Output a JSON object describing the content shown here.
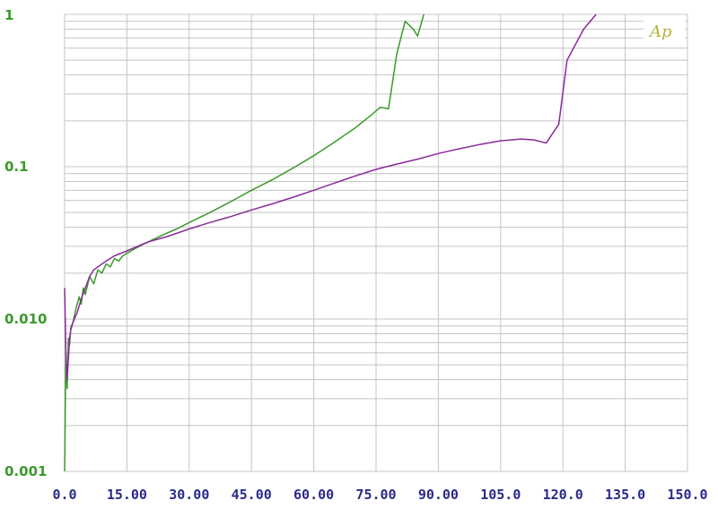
{
  "chart_data": {
    "type": "line",
    "title": "",
    "xlabel": "",
    "ylabel": "",
    "xlim": [
      0,
      150
    ],
    "ylim": [
      0.001,
      1
    ],
    "yscale": "log",
    "grid": true,
    "logo_text": "Ap",
    "x_tick_labels": [
      "0.0",
      "15.00",
      "30.00",
      "45.00",
      "60.00",
      "75.00",
      "90.00",
      "105.0",
      "120.0",
      "135.0",
      "150.0"
    ],
    "y_tick_labels": [
      {
        "label": "1",
        "value": 1
      },
      {
        "label": "0.1",
        "value": 0.1
      },
      {
        "label": "0.010",
        "value": 0.01
      },
      {
        "label": "0.001",
        "value": 0.001
      }
    ],
    "series": [
      {
        "color": "#3a9a2a",
        "points": [
          [
            0.0,
            0.001
          ],
          [
            0.3,
            0.006
          ],
          [
            0.6,
            0.0035
          ],
          [
            0.9,
            0.0075
          ],
          [
            1.2,
            0.0068
          ],
          [
            1.5,
            0.0088
          ],
          [
            2.0,
            0.0095
          ],
          [
            2.5,
            0.011
          ],
          [
            3.0,
            0.0125
          ],
          [
            3.5,
            0.014
          ],
          [
            4.0,
            0.0125
          ],
          [
            4.5,
            0.016
          ],
          [
            5.0,
            0.0145
          ],
          [
            6.0,
            0.019
          ],
          [
            7.0,
            0.017
          ],
          [
            8.0,
            0.021
          ],
          [
            9.0,
            0.02
          ],
          [
            10.0,
            0.023
          ],
          [
            11.0,
            0.022
          ],
          [
            12.0,
            0.025
          ],
          [
            13.0,
            0.024
          ],
          [
            14.0,
            0.026
          ],
          [
            15.0,
            0.027
          ],
          [
            17.0,
            0.029
          ],
          [
            19.0,
            0.031
          ],
          [
            21.0,
            0.033
          ],
          [
            24.0,
            0.036
          ],
          [
            27.0,
            0.039
          ],
          [
            30.0,
            0.043
          ],
          [
            35.0,
            0.05
          ],
          [
            40.0,
            0.059
          ],
          [
            45.0,
            0.07
          ],
          [
            50.0,
            0.082
          ],
          [
            55.0,
            0.098
          ],
          [
            60.0,
            0.118
          ],
          [
            65.0,
            0.145
          ],
          [
            70.0,
            0.18
          ],
          [
            74.0,
            0.22
          ],
          [
            76.0,
            0.245
          ],
          [
            78.0,
            0.24
          ],
          [
            80.0,
            0.55
          ],
          [
            82.0,
            0.9
          ],
          [
            84.0,
            0.8
          ],
          [
            85.0,
            0.72
          ],
          [
            86.5,
            1.0
          ]
        ]
      },
      {
        "color": "#8a2a9a",
        "points": [
          [
            0.0,
            0.016
          ],
          [
            0.3,
            0.006
          ],
          [
            0.6,
            0.004
          ],
          [
            0.9,
            0.0055
          ],
          [
            1.2,
            0.0075
          ],
          [
            1.5,
            0.0085
          ],
          [
            2.0,
            0.0095
          ],
          [
            3.0,
            0.011
          ],
          [
            4.0,
            0.0135
          ],
          [
            5.0,
            0.016
          ],
          [
            6.0,
            0.019
          ],
          [
            7.0,
            0.021
          ],
          [
            8.0,
            0.022
          ],
          [
            9.0,
            0.023
          ],
          [
            10.0,
            0.024
          ],
          [
            12.0,
            0.026
          ],
          [
            15.0,
            0.028
          ],
          [
            20.0,
            0.032
          ],
          [
            25.0,
            0.035
          ],
          [
            30.0,
            0.039
          ],
          [
            35.0,
            0.043
          ],
          [
            40.0,
            0.047
          ],
          [
            45.0,
            0.052
          ],
          [
            50.0,
            0.057
          ],
          [
            55.0,
            0.063
          ],
          [
            60.0,
            0.07
          ],
          [
            65.0,
            0.078
          ],
          [
            70.0,
            0.087
          ],
          [
            75.0,
            0.096
          ],
          [
            80.0,
            0.104
          ],
          [
            85.0,
            0.112
          ],
          [
            90.0,
            0.122
          ],
          [
            95.0,
            0.131
          ],
          [
            100.0,
            0.14
          ],
          [
            105.0,
            0.148
          ],
          [
            110.0,
            0.152
          ],
          [
            113.0,
            0.15
          ],
          [
            116.0,
            0.143
          ],
          [
            119.0,
            0.19
          ],
          [
            121.0,
            0.5
          ],
          [
            125.0,
            0.8
          ],
          [
            128.0,
            1.0
          ]
        ]
      }
    ]
  }
}
